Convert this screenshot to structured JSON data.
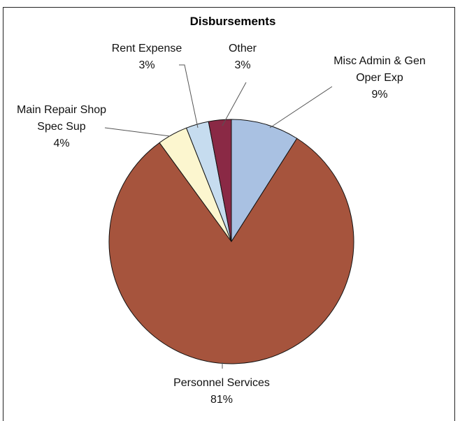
{
  "chart_data": {
    "type": "pie",
    "title": "Disbursements",
    "categories": [
      "Misc Admin & Gen Oper Exp",
      "Personnel Services",
      "Main Repair Shop Spec Sup",
      "Rent Expense",
      "Other"
    ],
    "values": [
      9,
      81,
      4,
      3,
      3
    ],
    "value_labels": [
      "9%",
      "81%",
      "4%",
      "3%",
      "3%"
    ],
    "colors": [
      "#a9c1e2",
      "#a6543d",
      "#fcf6cf",
      "#c6dcef",
      "#8a2945"
    ]
  }
}
